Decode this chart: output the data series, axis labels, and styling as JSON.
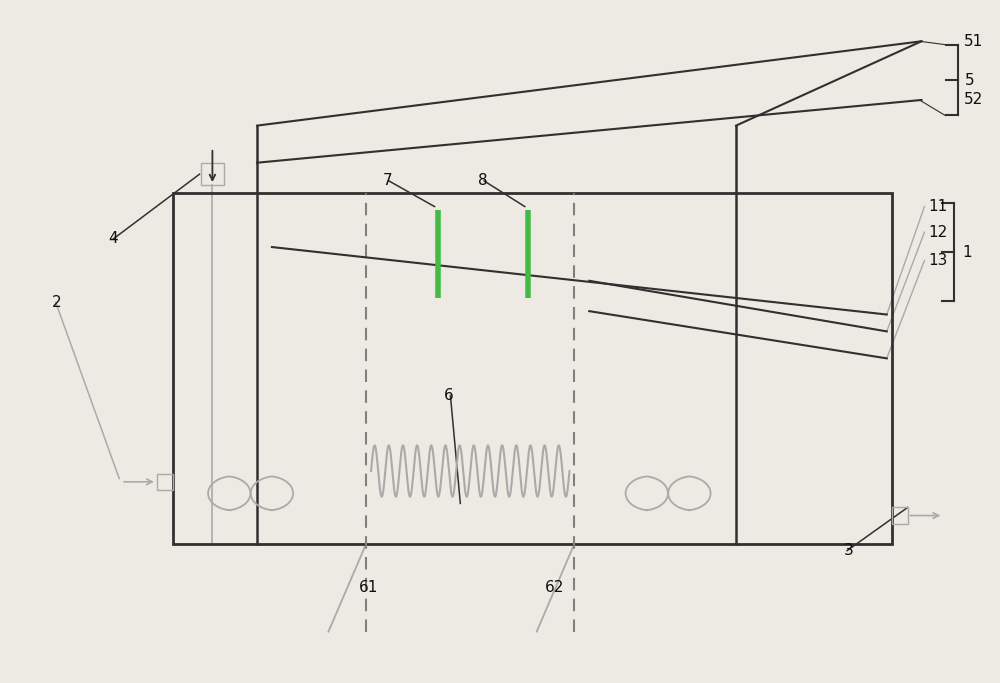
{
  "bg_color": "#ede9e3",
  "box_color": "#303030",
  "line_color": "#303030",
  "dashed_color": "#808080",
  "light_color": "#aaaaaa",
  "green_color": "#44bb44",
  "label_color": "#101010",
  "figsize": [
    10.0,
    6.83
  ],
  "dpi": 100
}
